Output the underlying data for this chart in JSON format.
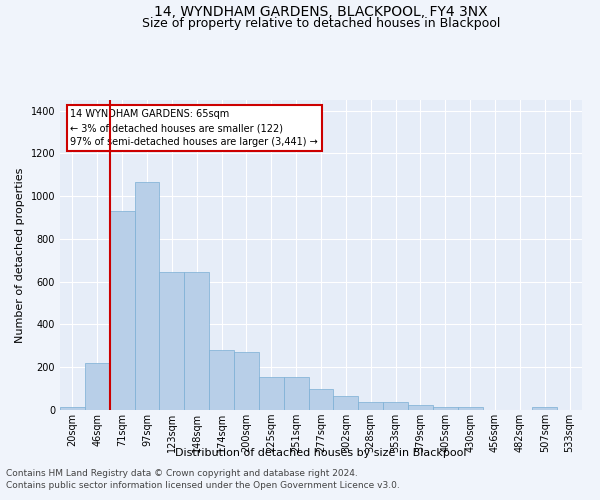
{
  "title": "14, WYNDHAM GARDENS, BLACKPOOL, FY4 3NX",
  "subtitle": "Size of property relative to detached houses in Blackpool",
  "xlabel": "Distribution of detached houses by size in Blackpool",
  "ylabel": "Number of detached properties",
  "categories": [
    "20sqm",
    "46sqm",
    "71sqm",
    "97sqm",
    "123sqm",
    "148sqm",
    "174sqm",
    "200sqm",
    "225sqm",
    "251sqm",
    "277sqm",
    "302sqm",
    "328sqm",
    "353sqm",
    "379sqm",
    "405sqm",
    "430sqm",
    "456sqm",
    "482sqm",
    "507sqm",
    "533sqm"
  ],
  "values": [
    15,
    220,
    930,
    1065,
    645,
    645,
    280,
    270,
    155,
    155,
    100,
    65,
    38,
    38,
    22,
    14,
    14,
    0,
    0,
    15,
    0
  ],
  "bar_color": "#b8cfe8",
  "bar_edge_color": "#7aafd4",
  "vline_color": "#cc0000",
  "annotation_text": "14 WYNDHAM GARDENS: 65sqm\n← 3% of detached houses are smaller (122)\n97% of semi-detached houses are larger (3,441) →",
  "annotation_box_color": "#ffffff",
  "annotation_box_edge_color": "#cc0000",
  "ylim": [
    0,
    1450
  ],
  "yticks": [
    0,
    200,
    400,
    600,
    800,
    1000,
    1200,
    1400
  ],
  "footnote1": "Contains HM Land Registry data © Crown copyright and database right 2024.",
  "footnote2": "Contains public sector information licensed under the Open Government Licence v3.0.",
  "bg_color": "#f0f4fb",
  "plot_bg_color": "#e6edf8",
  "grid_color": "#ffffff",
  "title_fontsize": 10,
  "subtitle_fontsize": 9,
  "axis_label_fontsize": 8,
  "tick_fontsize": 7,
  "annotation_fontsize": 7,
  "footnote_fontsize": 6.5
}
